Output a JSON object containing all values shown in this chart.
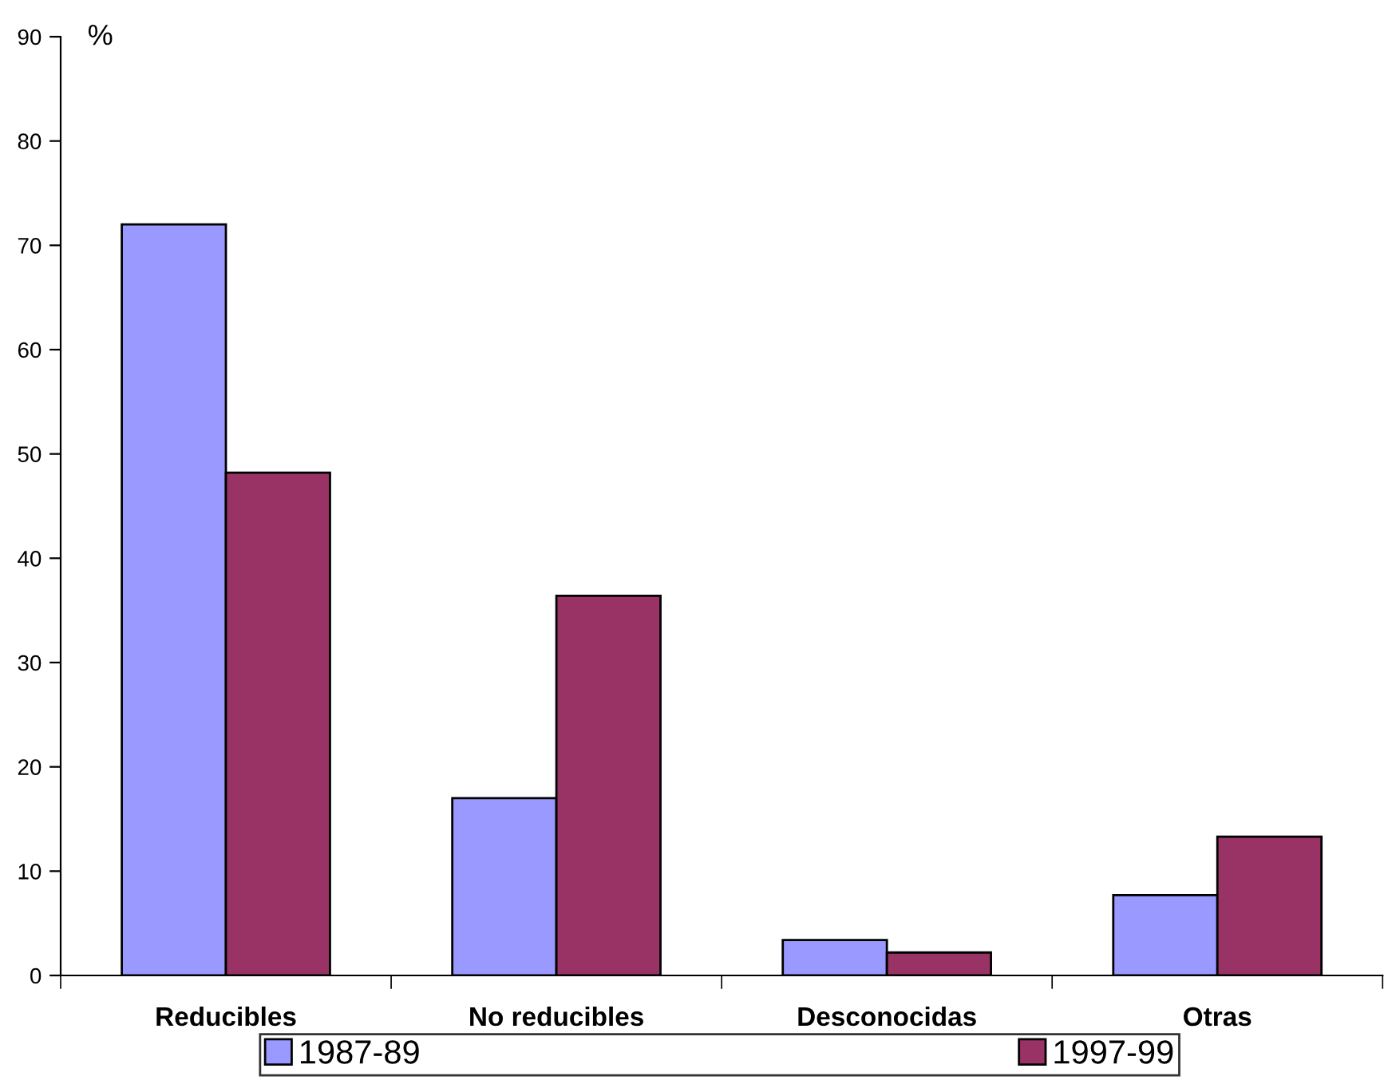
{
  "chart_data": {
    "type": "bar",
    "ylabel": "%",
    "categories": [
      "Reducibles",
      "No reducibles",
      "Desconocidas",
      "Otras"
    ],
    "series": [
      {
        "name": "1987-89",
        "color": "#9999ff",
        "values": [
          72,
          17,
          3.4,
          7.7
        ]
      },
      {
        "name": "1997-99",
        "color": "#993366",
        "values": [
          48.2,
          36.4,
          2.2,
          13.3
        ]
      }
    ],
    "ylim": [
      0,
      90
    ],
    "yticks": [
      0,
      10,
      20,
      30,
      40,
      50,
      60,
      70,
      80,
      90
    ],
    "grid": false,
    "legend": "bottom"
  }
}
